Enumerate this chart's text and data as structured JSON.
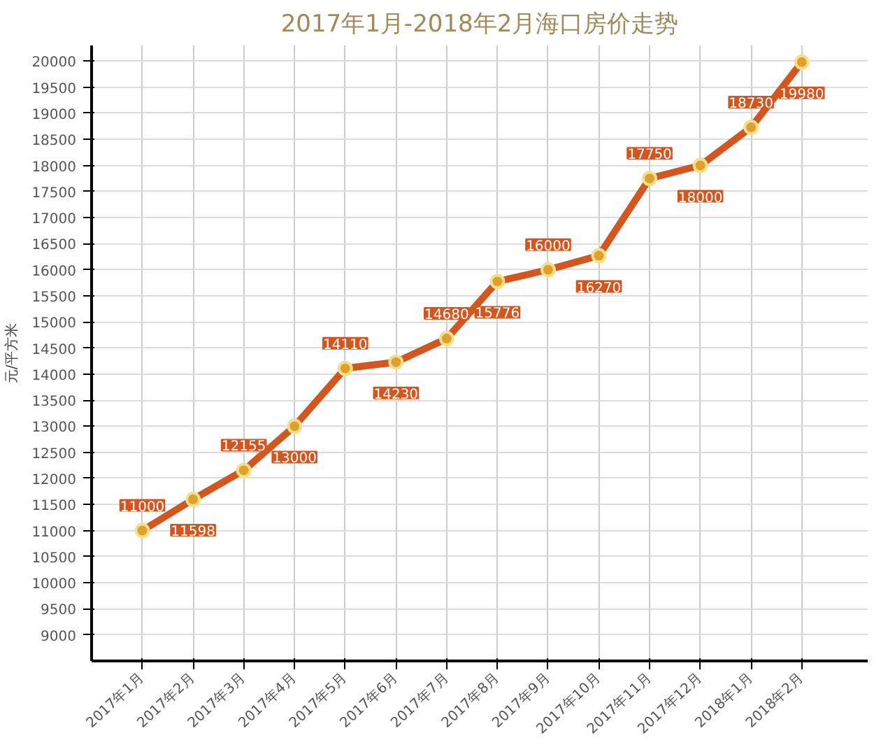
{
  "chart_data": {
    "type": "line",
    "title": "2017年1月-2018年2月海口房价走势",
    "ylabel": "元/平方米",
    "categories": [
      "2017年1月",
      "2017年2月",
      "2017年3月",
      "2017年4月",
      "2017年5月",
      "2017年6月",
      "2017年7月",
      "2017年8月",
      "2017年9月",
      "2017年10月",
      "2017年11月",
      "2017年12月",
      "2018年1月",
      "2018年2月"
    ],
    "series": [
      {
        "color": "#d4561f",
        "values": [
          11000,
          11598,
          12155,
          13000,
          14110,
          14230,
          14680,
          15776,
          16000,
          16270,
          17750,
          18000,
          18730,
          19980
        ]
      }
    ],
    "ylim": [
      8500,
      20300
    ],
    "yticks": [
      9000,
      9500,
      10000,
      10500,
      11000,
      11500,
      12000,
      12500,
      13000,
      13500,
      14000,
      14500,
      15000,
      15500,
      16000,
      16500,
      17000,
      17500,
      18000,
      18500,
      19000,
      19500,
      20000
    ],
    "grid": true,
    "marker": "circle",
    "data_labels": true
  }
}
